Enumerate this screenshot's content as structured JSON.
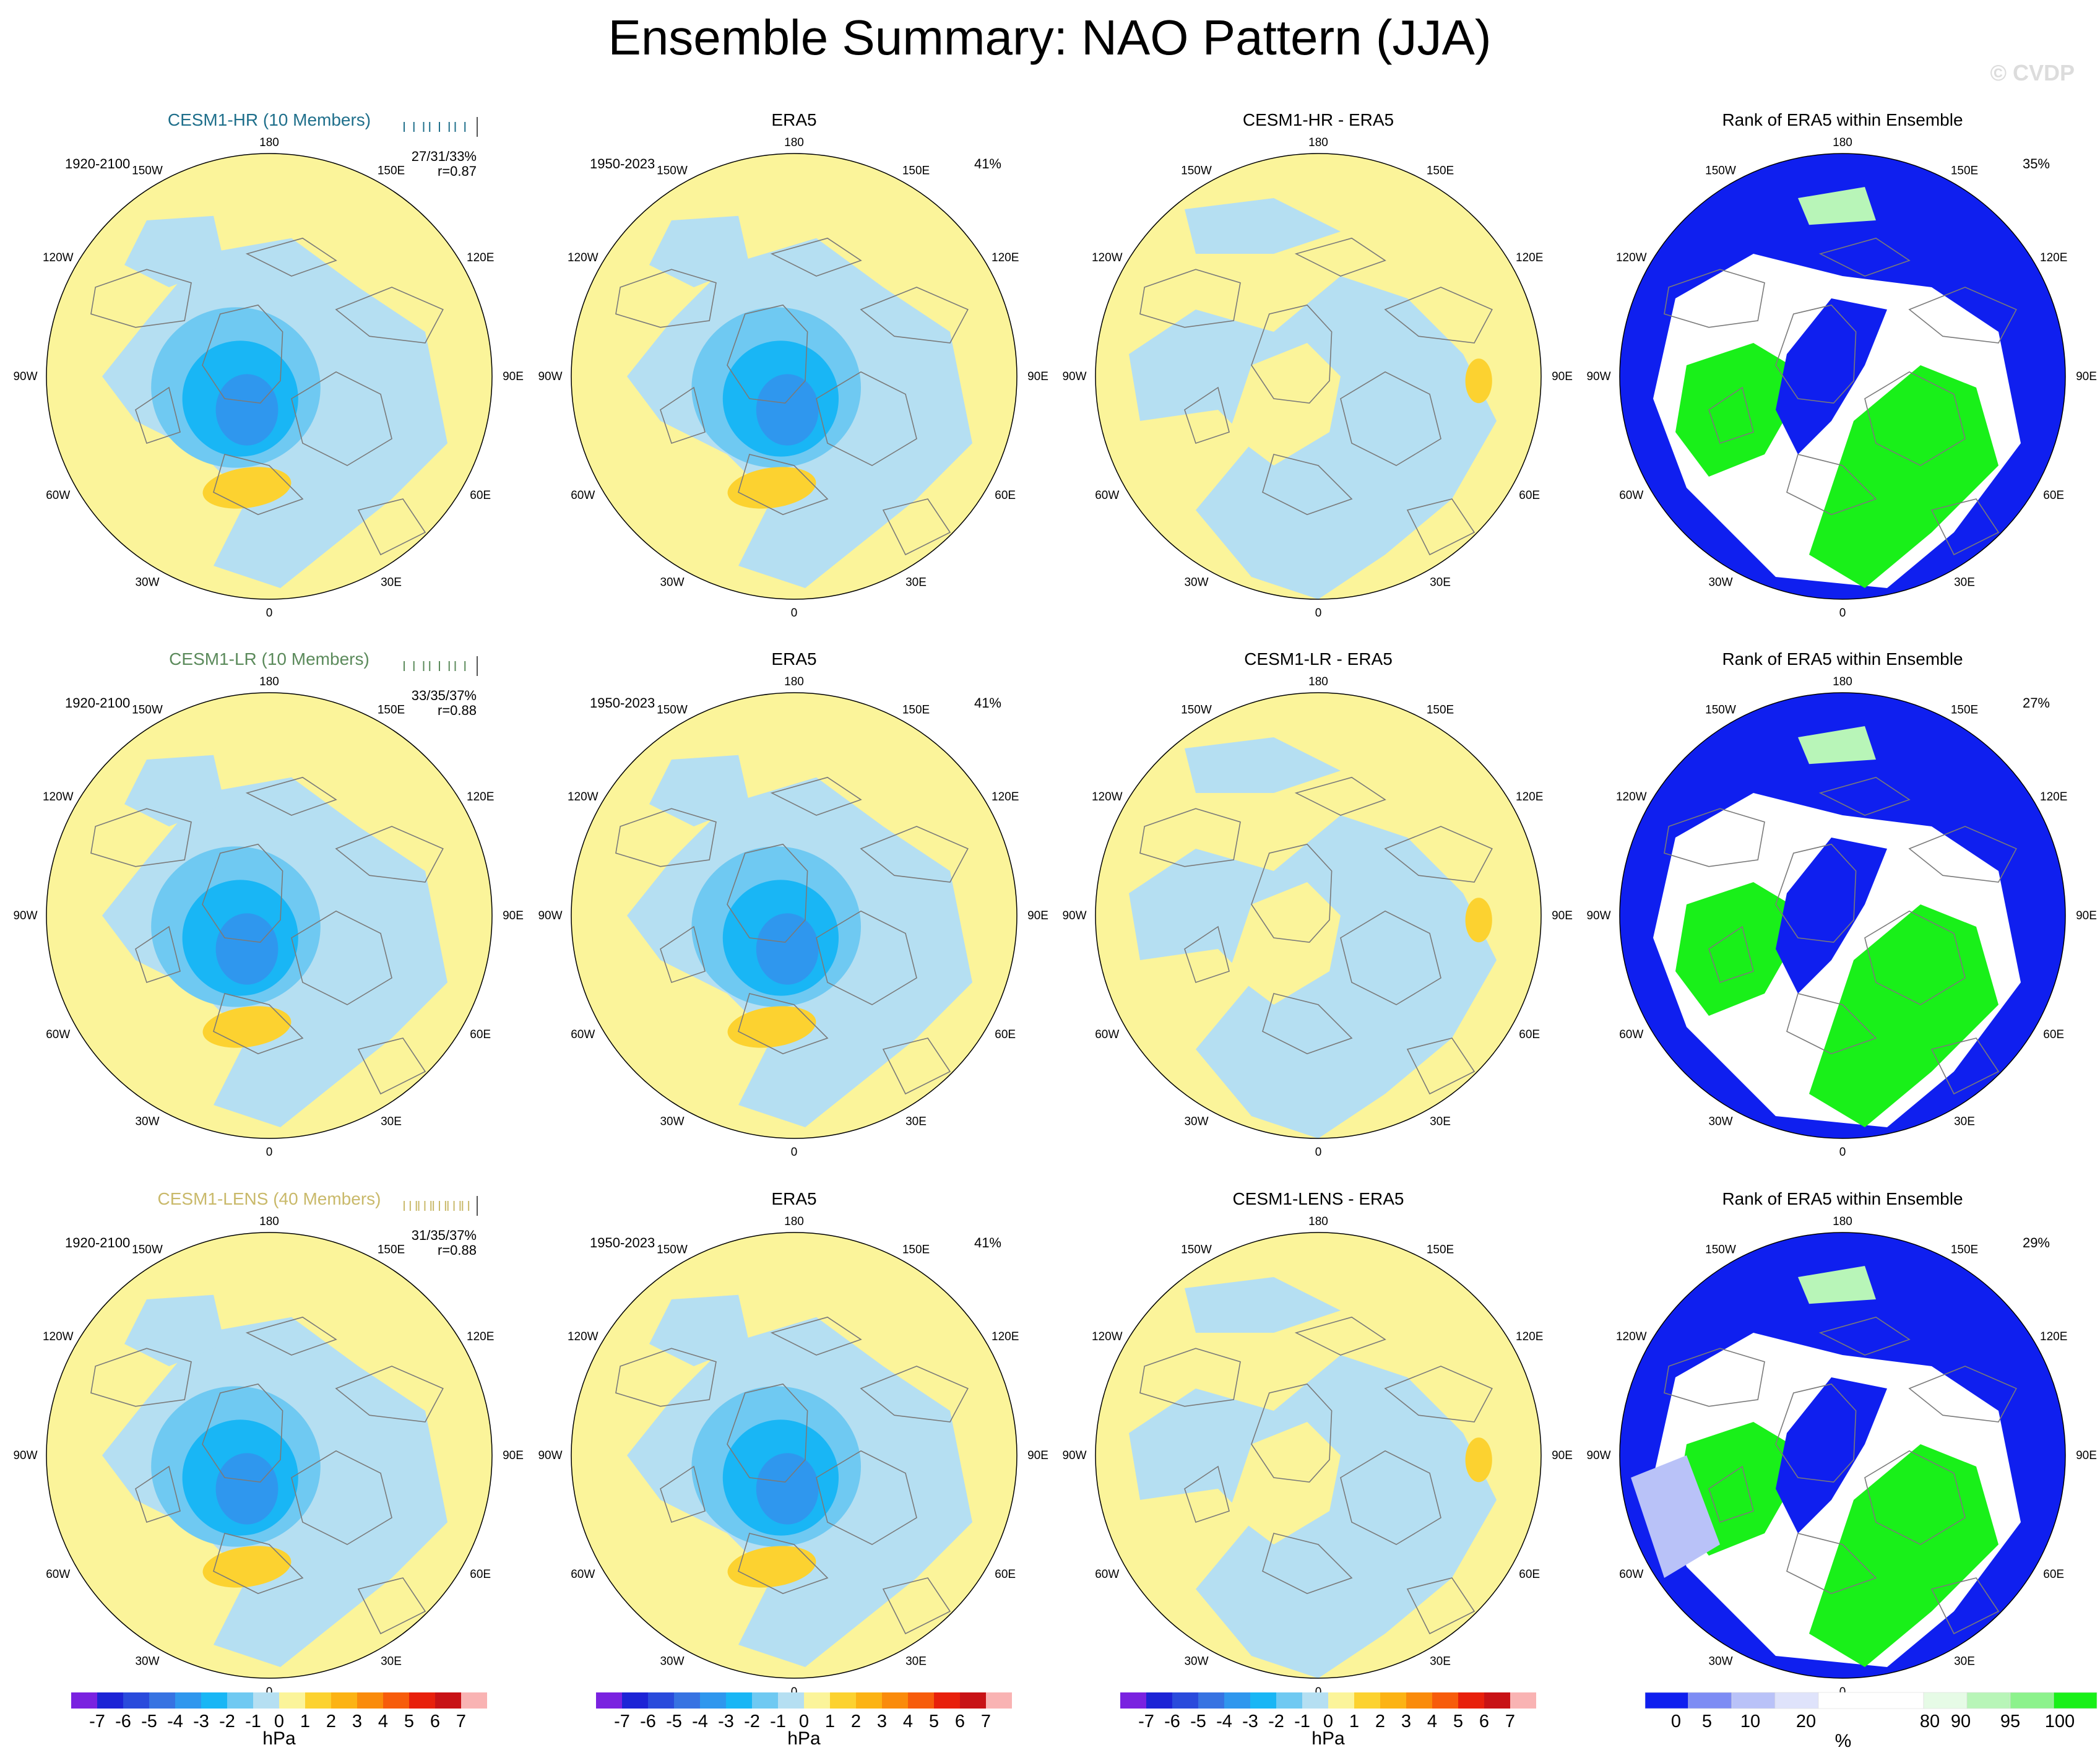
{
  "title": "Ensemble Summary: NAO Pattern (JJA)",
  "watermark": "© CVDP",
  "colors": {
    "title_hr": "#1f6f8b",
    "title_lr": "#5b8a5b",
    "title_lens": "#c9b96a",
    "land": "#7a7a7a"
  },
  "lon_labels": {
    "top": "180",
    "bottom": "0",
    "left": [
      "150W",
      "120W",
      "90W",
      "60W",
      "30W"
    ],
    "right": [
      "150E",
      "120E",
      "90E",
      "60E",
      "30E"
    ]
  },
  "rows": [
    {
      "model": {
        "title": "CESM1-HR (10 Members)",
        "period": "1920-2100",
        "pct": "27/31/33%",
        "r": "r=0.87",
        "color": "#1f6f8b"
      },
      "obs": {
        "title": "ERA5",
        "period": "1950-2023",
        "pct": "41%"
      },
      "diff": {
        "title": "CESM1-HR - ERA5"
      },
      "rank": {
        "title": "Rank of ERA5 within Ensemble",
        "pct": "35%"
      }
    },
    {
      "model": {
        "title": "CESM1-LR (10 Members)",
        "period": "1920-2100",
        "pct": "33/35/37%",
        "r": "r=0.88",
        "color": "#5b8a5b"
      },
      "obs": {
        "title": "ERA5",
        "period": "1950-2023",
        "pct": "41%"
      },
      "diff": {
        "title": "CESM1-LR - ERA5"
      },
      "rank": {
        "title": "Rank of ERA5 within Ensemble",
        "pct": "27%"
      }
    },
    {
      "model": {
        "title": "CESM1-LENS (40 Members)",
        "period": "1920-2100",
        "pct": "31/35/37%",
        "r": "r=0.88",
        "color": "#c9b96a"
      },
      "obs": {
        "title": "ERA5",
        "period": "1950-2023",
        "pct": "41%"
      },
      "diff": {
        "title": "CESM1-LENS - ERA5"
      },
      "rank": {
        "title": "Rank of ERA5 within Ensemble",
        "pct": "29%"
      }
    }
  ],
  "chart_data": {
    "type": "heatmap",
    "projection": "north polar stereographic",
    "variable": "NAO pattern (sea level pressure regression)",
    "season": "JJA",
    "pattern_colorbar": {
      "unit": "hPa",
      "labels": [
        "-7",
        "-6",
        "-5",
        "-4",
        "-3",
        "-2",
        "-1",
        "0",
        "1",
        "2",
        "3",
        "4",
        "5",
        "6",
        "7"
      ],
      "colors": [
        "#7a22e0",
        "#1d24d6",
        "#2a4bdc",
        "#3773e2",
        "#2f97ee",
        "#19b6f5",
        "#6fc9f2",
        "#b5dff2",
        "#fbf49a",
        "#fcd230",
        "#fcb314",
        "#fa8b0c",
        "#f75c0c",
        "#e8200c",
        "#c81216",
        "#f9b3b3"
      ]
    },
    "rank_colorbar": {
      "unit": "%",
      "labels": [
        "0",
        "5",
        "10",
        "20",
        "80",
        "90",
        "95",
        "100"
      ],
      "colors": [
        "#0f1fef",
        "#7d8cf4",
        "#b9c2f8",
        "#dfe3fb",
        "#ffffff",
        "#e6fbe6",
        "#b8f5b8",
        "#8cf28c",
        "#19f019"
      ]
    }
  }
}
